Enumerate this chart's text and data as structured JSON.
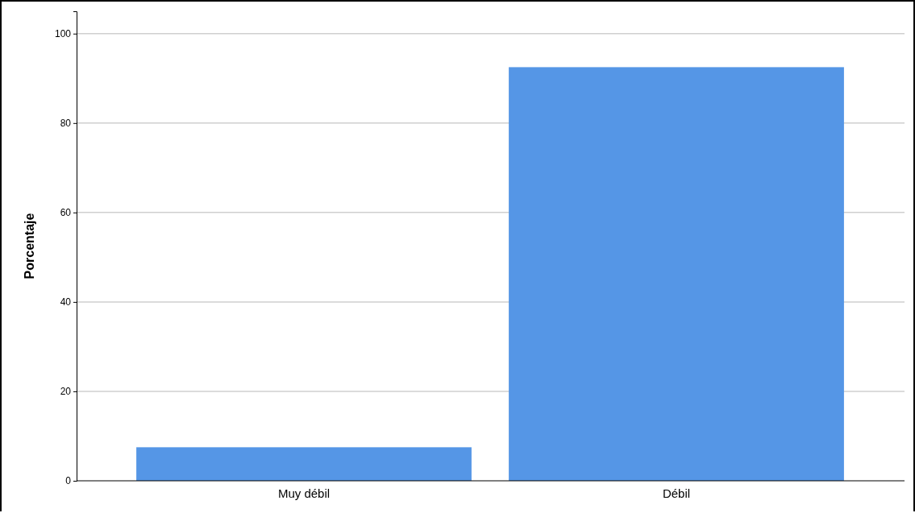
{
  "chart_data": {
    "type": "bar",
    "ylabel": "Porcentaje",
    "categories": [
      "Muy débil",
      "Débil"
    ],
    "values": [
      7.5,
      92.5
    ],
    "color": "#5596e6",
    "ylim": [
      0,
      105
    ],
    "yticks": [
      0,
      20,
      40,
      60,
      80,
      100
    ],
    "grid": "y"
  }
}
